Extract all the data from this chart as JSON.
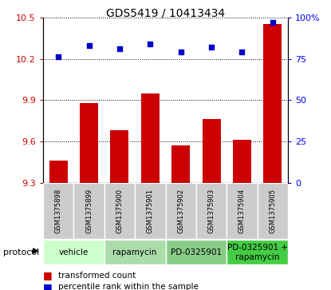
{
  "title": "GDS5419 / 10413434",
  "samples": [
    "GSM1375898",
    "GSM1375899",
    "GSM1375900",
    "GSM1375901",
    "GSM1375902",
    "GSM1375903",
    "GSM1375904",
    "GSM1375905"
  ],
  "bar_values": [
    9.46,
    9.88,
    9.68,
    9.95,
    9.57,
    9.76,
    9.61,
    10.45
  ],
  "scatter_values": [
    76,
    83,
    81,
    84,
    79,
    82,
    79,
    97
  ],
  "ylim_left": [
    9.3,
    10.5
  ],
  "ylim_right": [
    0,
    100
  ],
  "yticks_left": [
    9.3,
    9.6,
    9.9,
    10.2,
    10.5
  ],
  "yticks_right": [
    0,
    25,
    50,
    75,
    100
  ],
  "bar_color": "#cc0000",
  "scatter_color": "#0000cc",
  "proto_labels": [
    "vehicle",
    "rapamycin",
    "PD-0325901",
    "PD-0325901 +\nrapamycin"
  ],
  "proto_colors": [
    "#ccffcc",
    "#aaddaa",
    "#88cc88",
    "#44cc44"
  ],
  "legend_bar_label": "transformed count",
  "legend_scatter_label": "percentile rank within the sample",
  "protocol_label": "protocol",
  "sample_bg_color": "#cccccc",
  "title_fontsize": 10,
  "axis_fontsize": 8,
  "sample_fontsize": 6,
  "proto_fontsize": 7.5,
  "legend_fontsize": 7.5
}
